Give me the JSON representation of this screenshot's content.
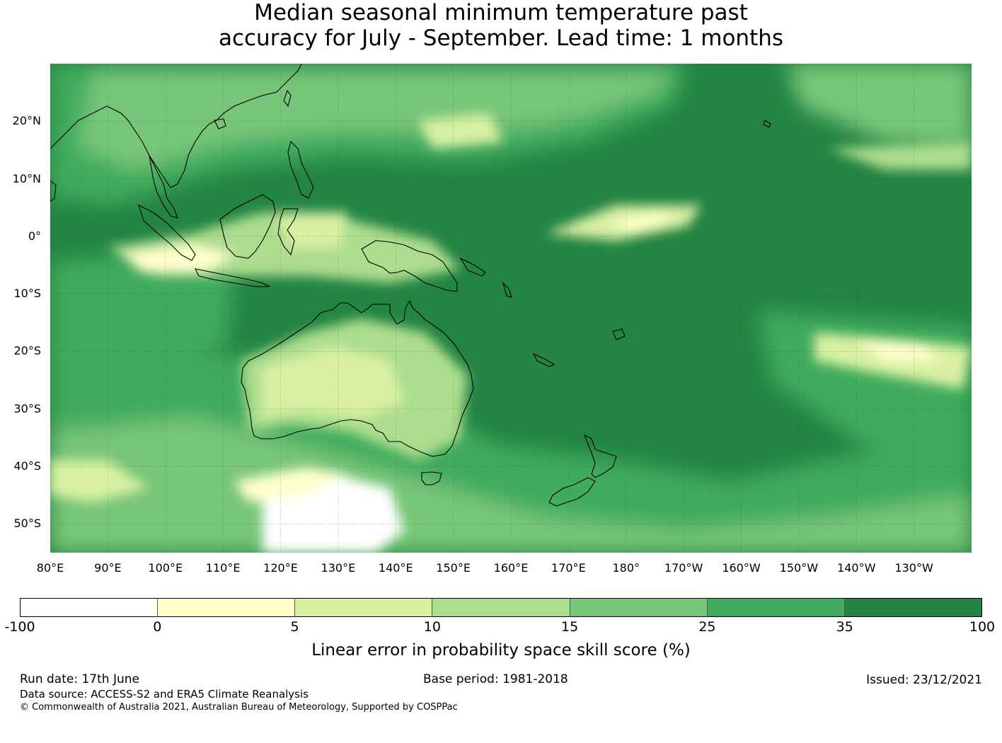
{
  "title": {
    "line1": "Median seasonal minimum temperature past",
    "line2": "accuracy for July - September. Lead time: 1 months"
  },
  "map": {
    "lon_range": [
      80,
      240
    ],
    "lat_range": [
      -55,
      30
    ],
    "lat_labels": [
      "20°N",
      "10°N",
      "0°",
      "10°S",
      "20°S",
      "30°S",
      "40°S",
      "50°S"
    ],
    "lat_values": [
      20,
      10,
      0,
      -10,
      -20,
      -30,
      -40,
      -50
    ],
    "lon_labels": [
      "80°E",
      "90°E",
      "100°E",
      "110°E",
      "120°E",
      "130°E",
      "140°E",
      "150°E",
      "160°E",
      "170°E",
      "180°",
      "170°W",
      "160°W",
      "150°W",
      "140°W",
      "130°W"
    ],
    "lon_values": [
      80,
      90,
      100,
      110,
      120,
      130,
      140,
      150,
      160,
      170,
      180,
      190,
      200,
      210,
      220,
      230
    ]
  },
  "colorbar": {
    "ticks": [
      "-100",
      "0",
      "5",
      "10",
      "15",
      "25",
      "35",
      "100"
    ],
    "colors": [
      "#ffffff",
      "#ffffcc",
      "#d9f0a3",
      "#addd8e",
      "#78c679",
      "#41ab5d",
      "#238443"
    ],
    "label": "Linear error in probability space skill score (%)"
  },
  "footer": {
    "run_date": "Run date: 17th June",
    "base_period": "Base period: 1981-2018",
    "issued": "Issued: 23/12/2021",
    "data_source": "Data source: ACCESS-S2 and ERA5 Climate Reanalysis",
    "copyright": "© Commonwealth of Australia 2021, Australian Bureau of Meteorology, Supported by COSPPac"
  }
}
